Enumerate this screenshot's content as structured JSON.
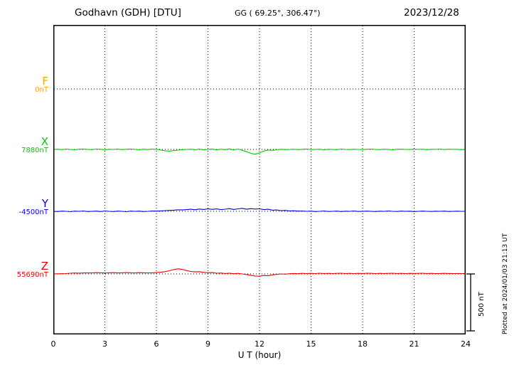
{
  "header": {
    "station_title": "Godhavn (GDH)  [DTU]",
    "gg_coords": "GG ( 69.25°, 306.47°)",
    "date": "2023/12/28"
  },
  "chart_data": {
    "type": "line",
    "title": "Godhavn (GDH)  [DTU]",
    "subtitle": "GG ( 69.25°, 306.47°)",
    "date": "2023/12/28",
    "xlabel": "U T (hour)",
    "x_range": [
      0,
      24
    ],
    "x_ticks": [
      0,
      3,
      6,
      9,
      12,
      15,
      18,
      21,
      24
    ],
    "grid": "dotted-vertical-at-ticks",
    "scale_bar": {
      "label": "500 nT",
      "nT": 500
    },
    "plotted_at": "Plotted at 2024/01/03 21:13 UT",
    "sample_step_hours": 0.25,
    "series": [
      {
        "name": "F",
        "label": "F",
        "baseline_label": "0nT",
        "color": "#ffa500",
        "values": []
      },
      {
        "name": "X",
        "label": "X",
        "baseline_label": "7880nT",
        "color": "#00cc00",
        "values": [
          0,
          2,
          -2,
          3,
          0,
          -3,
          2,
          4,
          0,
          -2,
          3,
          1,
          -3,
          2,
          0,
          3,
          -2,
          1,
          4,
          0,
          -3,
          2,
          -1,
          3,
          0,
          -5,
          -12,
          -15,
          -10,
          -6,
          -3,
          0,
          2,
          -3,
          3,
          -4,
          0,
          4,
          -4,
          2,
          -2,
          5,
          -5,
          3,
          -8,
          -20,
          -35,
          -42,
          -30,
          -15,
          -5,
          -8,
          -3,
          2,
          -2,
          0,
          2,
          -2,
          1,
          3,
          -1,
          0,
          2,
          -3,
          1,
          0,
          -2,
          3,
          0,
          -1,
          2,
          0,
          -2,
          1,
          3,
          0,
          -1,
          2,
          0,
          -3,
          1,
          2,
          0,
          -1,
          3,
          0,
          2,
          -2,
          1,
          0,
          3,
          -1,
          2,
          0,
          1,
          -2,
          0
        ]
      },
      {
        "name": "Y",
        "label": "Y",
        "baseline_label": "-4500nT",
        "color": "#0000ee",
        "values": [
          0,
          -2,
          2,
          0,
          -3,
          2,
          0,
          3,
          -2,
          0,
          2,
          -2,
          3,
          0,
          -2,
          2,
          0,
          -3,
          2,
          0,
          2,
          -2,
          0,
          3,
          2,
          4,
          6,
          8,
          10,
          14,
          12,
          15,
          18,
          14,
          20,
          16,
          22,
          17,
          21,
          15,
          19,
          24,
          16,
          22,
          26,
          18,
          24,
          20,
          22,
          15,
          18,
          10,
          12,
          6,
          8,
          4,
          5,
          2,
          3,
          0,
          2,
          -2,
          0,
          3,
          -1,
          0,
          2,
          -2,
          1,
          0,
          3,
          -1,
          0,
          2,
          0,
          -2,
          1,
          0,
          3,
          0,
          -1,
          2,
          0,
          1,
          -2,
          0,
          2,
          0,
          -1,
          1,
          0,
          2,
          -1,
          0,
          1,
          0,
          0
        ]
      },
      {
        "name": "Z",
        "label": "Z",
        "baseline_label": "55690nT",
        "color": "#ee0000",
        "values": [
          0,
          1,
          2,
          3,
          6,
          8,
          7,
          9,
          10,
          9,
          11,
          10,
          8,
          10,
          11,
          9,
          10,
          12,
          10,
          9,
          11,
          10,
          9,
          10,
          12,
          15,
          20,
          28,
          38,
          45,
          40,
          30,
          22,
          18,
          20,
          14,
          10,
          12,
          6,
          8,
          4,
          7,
          2,
          5,
          0,
          -5,
          -12,
          -18,
          -20,
          -14,
          -16,
          -8,
          -4,
          0,
          -2,
          2,
          4,
          2,
          5,
          3,
          5,
          3,
          6,
          4,
          5,
          3,
          5,
          6,
          4,
          5,
          3,
          5,
          4,
          6,
          5,
          3,
          5,
          4,
          5,
          6,
          4,
          5,
          3,
          5,
          4,
          5,
          6,
          4,
          5,
          3,
          4,
          5,
          4,
          3,
          4,
          3,
          3
        ]
      }
    ]
  }
}
